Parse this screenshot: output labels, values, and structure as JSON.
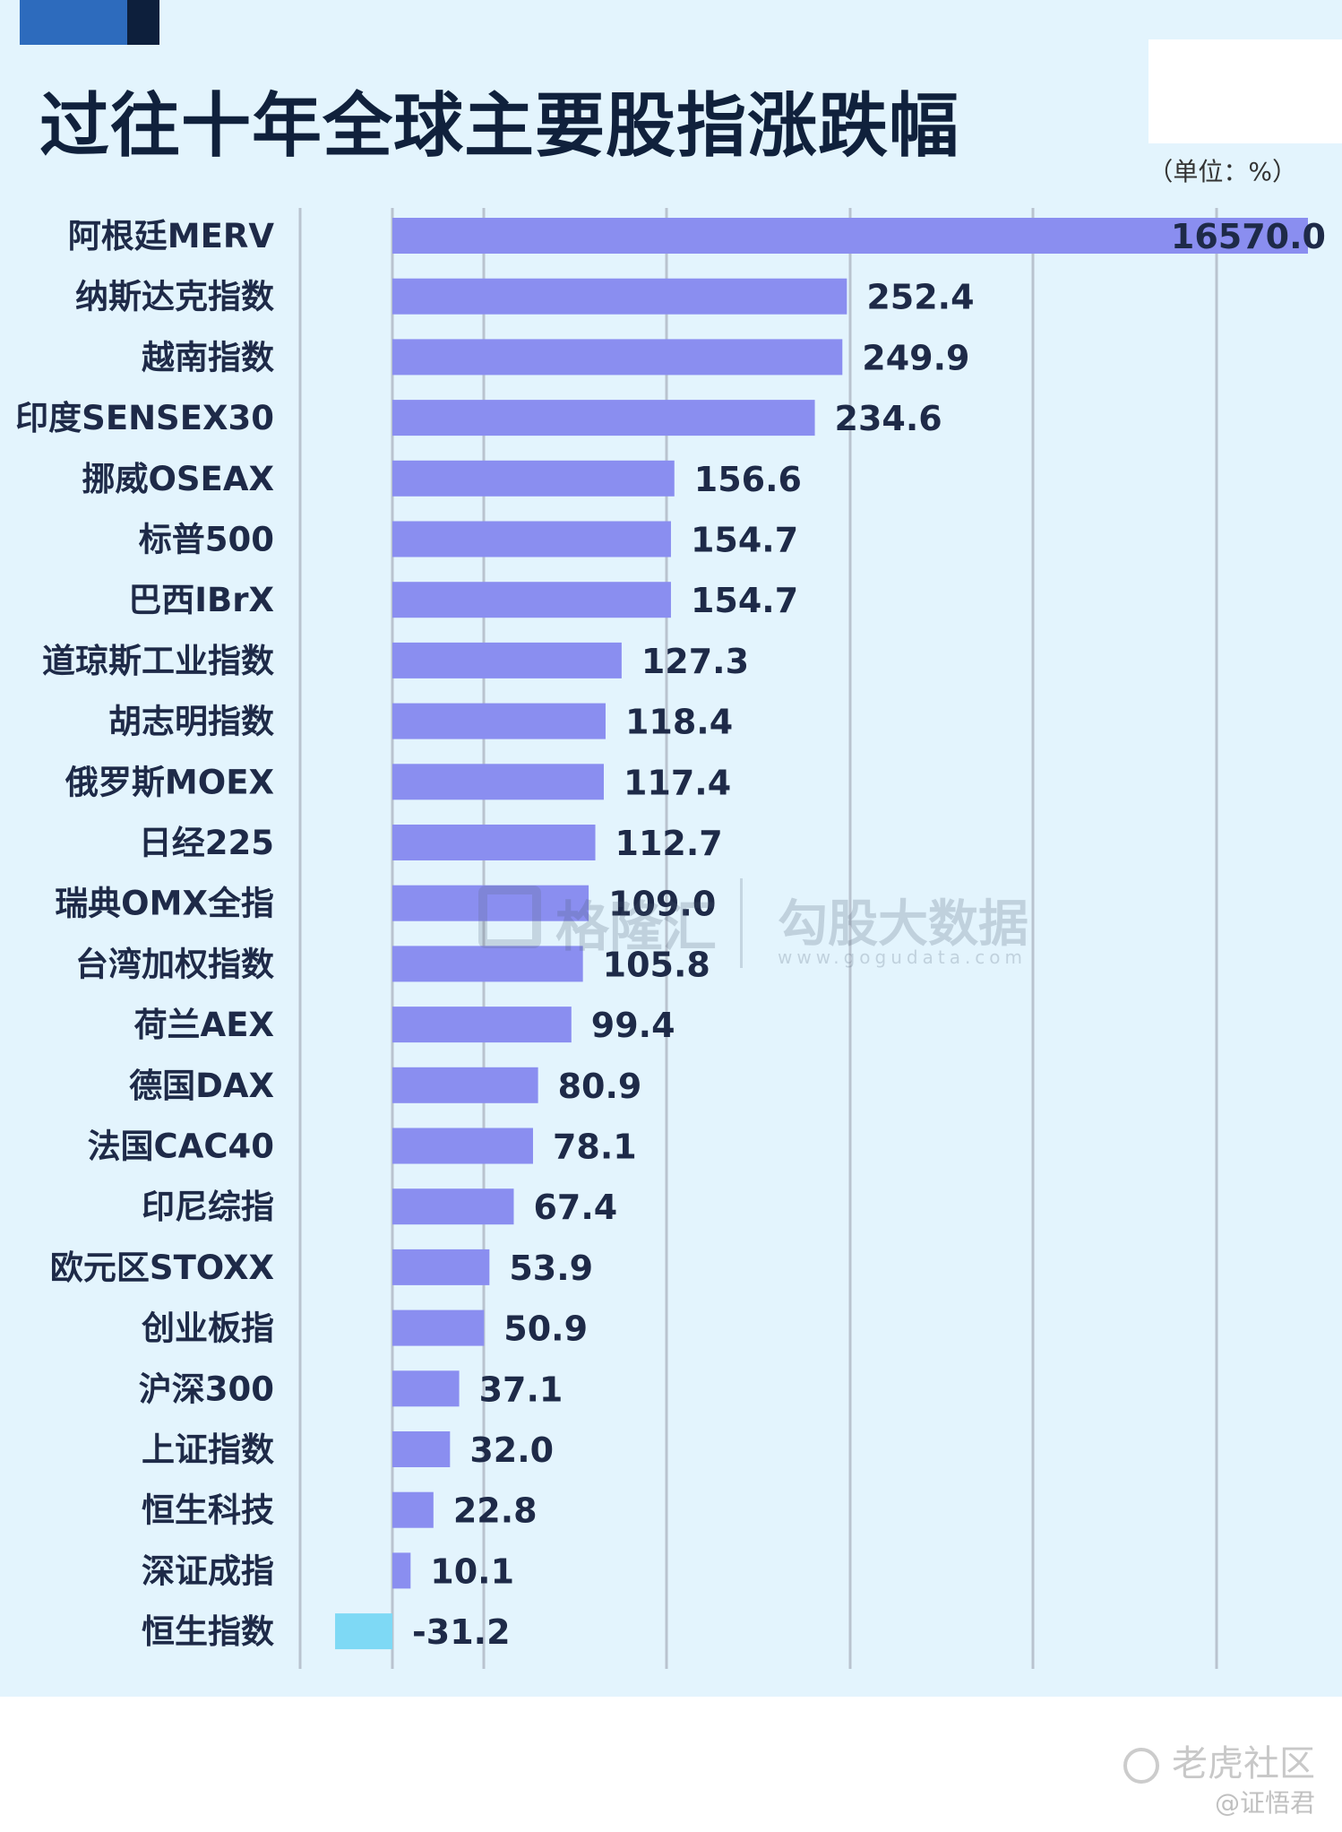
{
  "header": {
    "title": "过往十年全球主要股指涨跌幅",
    "unit": "（单位：%）"
  },
  "chart_data": {
    "type": "bar",
    "orientation": "horizontal",
    "categories": [
      "阿根廷MERV",
      "纳斯达克指数",
      "越南指数",
      "印度SENSEX30",
      "挪威OSEAX",
      "标普500",
      "巴西IBrX",
      "道琼斯工业指数",
      "胡志明指数",
      "俄罗斯MOEX",
      "日经225",
      "瑞典OMX全指",
      "台湾加权指数",
      "荷兰AEX",
      "德国DAX",
      "法国CAC40",
      "印尼综指",
      "欧元区STOXX",
      "创业板指",
      "沪深300",
      "上证指数",
      "恒生科技",
      "深证成指",
      "恒生指数"
    ],
    "values": [
      16570.0,
      252.4,
      249.9,
      234.6,
      156.6,
      154.7,
      154.7,
      127.3,
      118.4,
      117.4,
      112.7,
      109.0,
      105.8,
      99.4,
      80.9,
      78.1,
      67.4,
      53.9,
      50.9,
      37.1,
      32.0,
      22.8,
      10.1,
      -31.2
    ],
    "value_labels": [
      "16570.0",
      "252.4",
      "249.9",
      "234.6",
      "156.6",
      "154.7",
      "154.7",
      "127.3",
      "118.4",
      "117.4",
      "112.7",
      "109.0",
      "105.8",
      "99.4",
      "80.9",
      "78.1",
      "67.4",
      "53.9",
      "50.9",
      "37.1",
      "32.0",
      "22.8",
      "10.1",
      "-31.2"
    ],
    "axis_break": "first bar truncated",
    "grid": true,
    "colors": {
      "positive": "#8a8ef0",
      "negative": "#7ed9f5",
      "grid": "#b9c3cf"
    }
  },
  "watermark": {
    "brand1": "格隆汇",
    "brand2": "勾股大数据",
    "url": "www.gogudata.com"
  },
  "footer": {
    "site": "老虎社区",
    "author": "@证悟君"
  }
}
